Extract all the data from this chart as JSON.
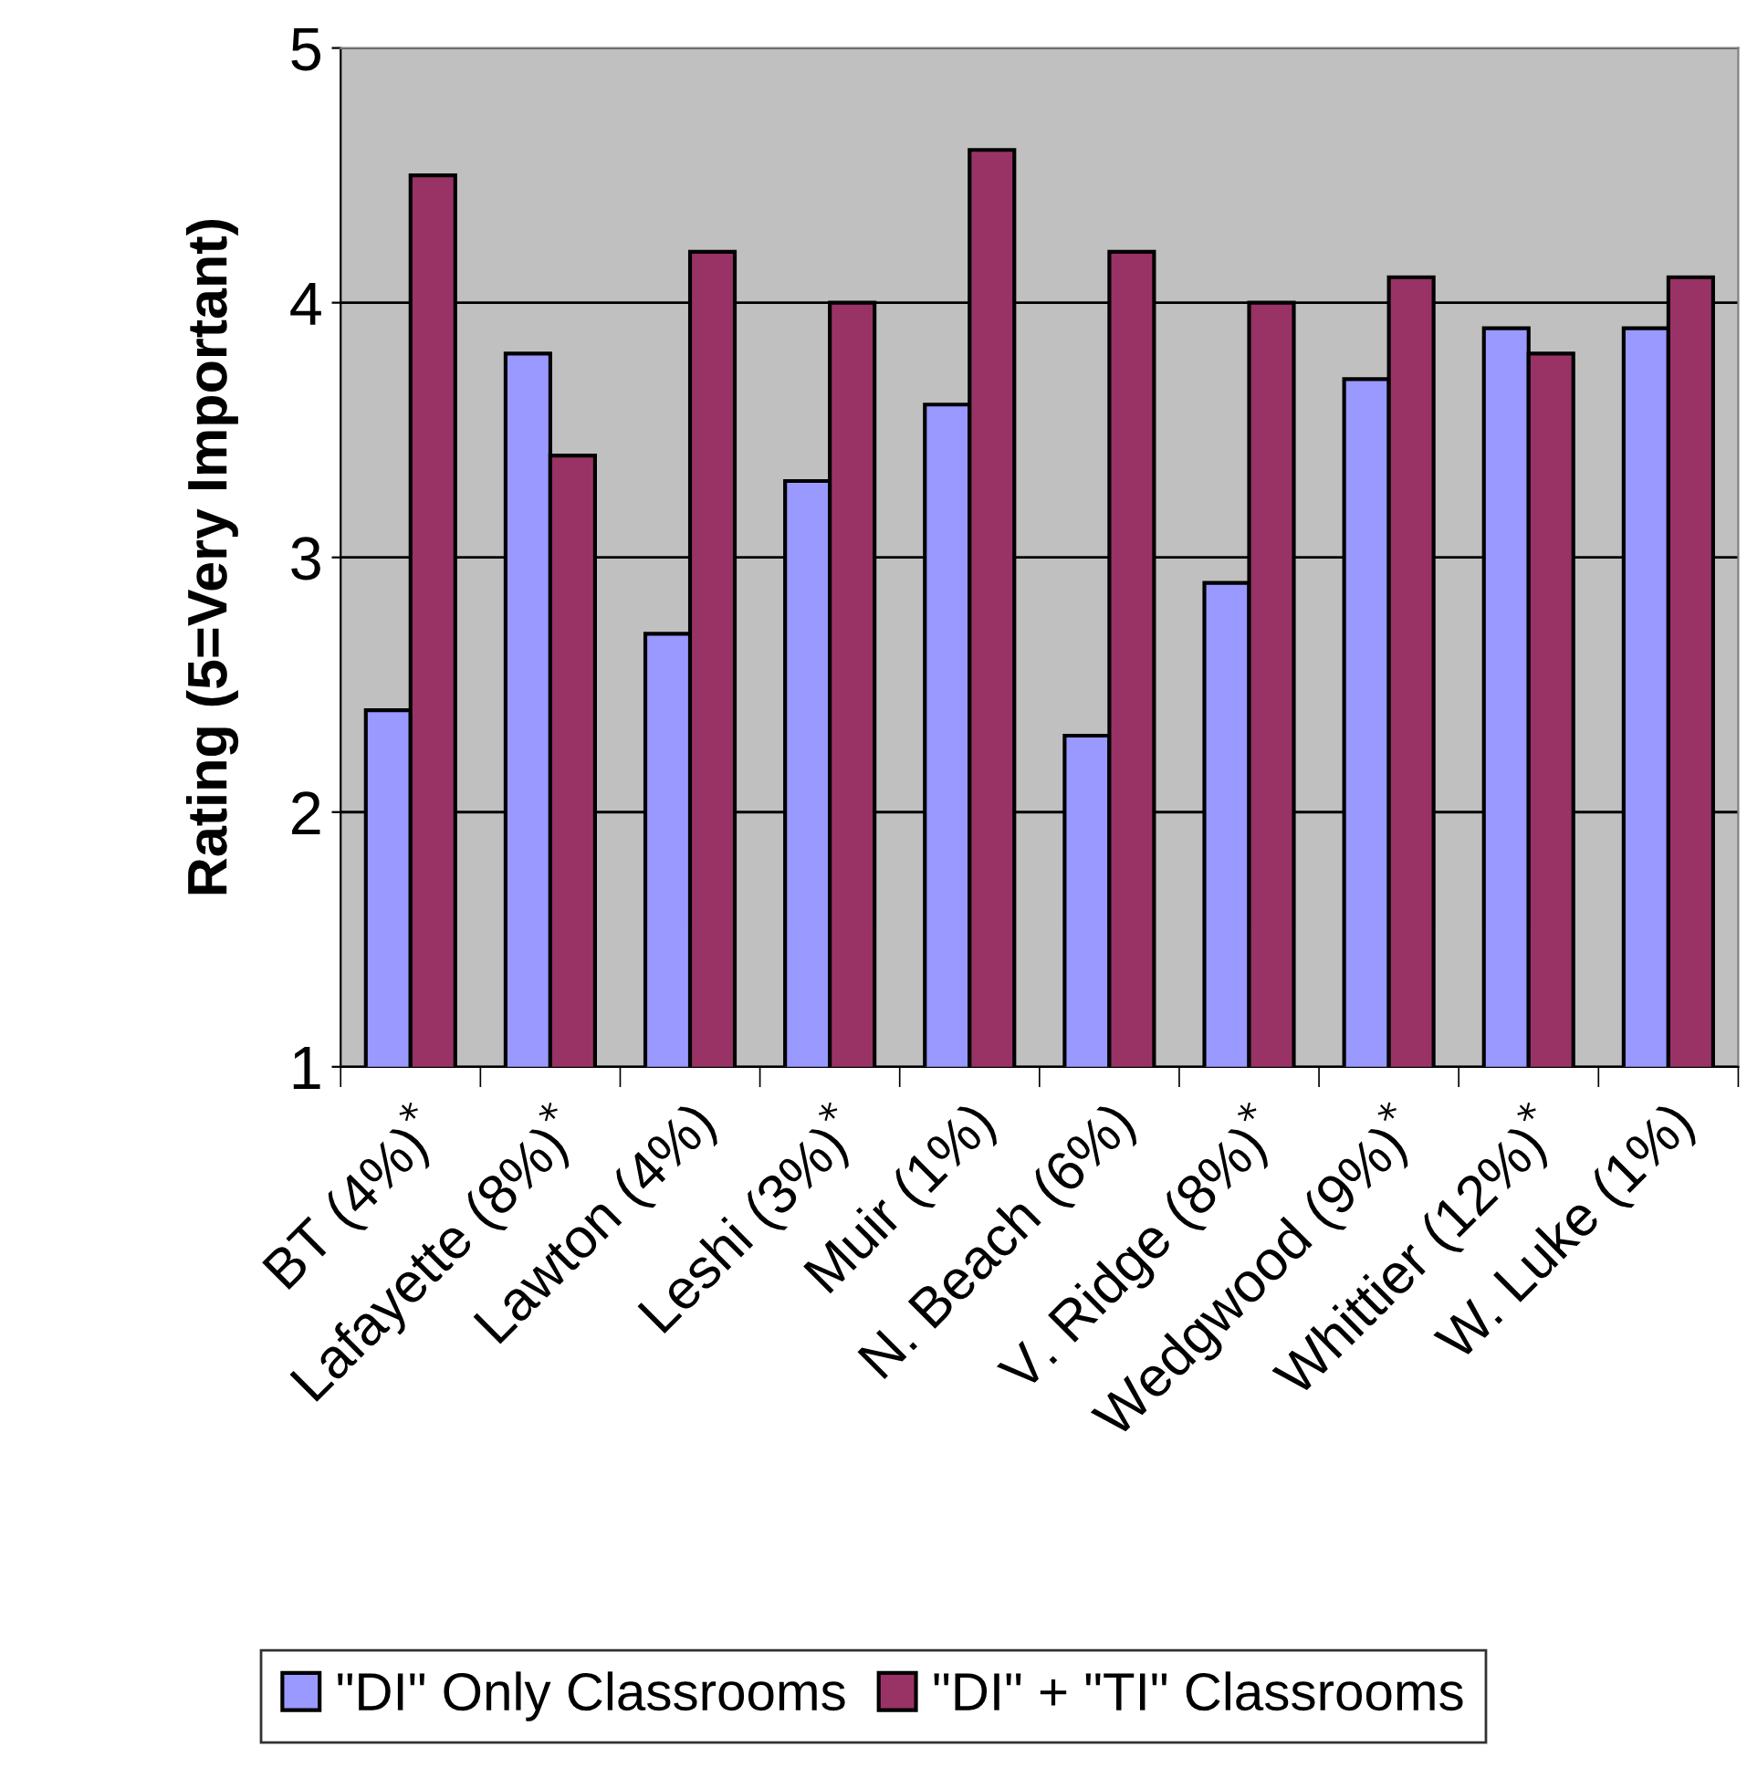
{
  "chart_data": {
    "type": "bar",
    "ylabel": "Rating (5=Very Important)",
    "categories": [
      "BT (4%)$^{*}$",
      "Lafayette (8%)$^{*}$",
      "Lawton (4%)",
      "Leshi (3%)$^{*}$",
      "Muir (1%)",
      "N. Beach (6%)",
      "V. Ridge (8%)$^{*}$",
      "Wedgwood (9%)$^{*}$",
      "Whittier (12%)$^{*}$",
      "W. Luke (1%)"
    ],
    "series": [
      {
        "name": "\"DI\" Only Classrooms",
        "color": "#9999ff",
        "values": [
          2.4,
          3.8,
          2.7,
          3.3,
          3.6,
          2.3,
          2.9,
          3.7,
          3.9,
          3.9
        ]
      },
      {
        "name": "\"DI\" + \"TI\" Classrooms",
        "color": "#993366",
        "values": [
          4.5,
          3.4,
          4.2,
          4.0,
          4.6,
          4.2,
          4.0,
          4.1,
          3.8,
          4.1
        ]
      }
    ],
    "ylim": [
      1,
      5
    ],
    "yticks": [
      1,
      2,
      3,
      4,
      5
    ],
    "grid": "y",
    "legend": "bottom"
  }
}
